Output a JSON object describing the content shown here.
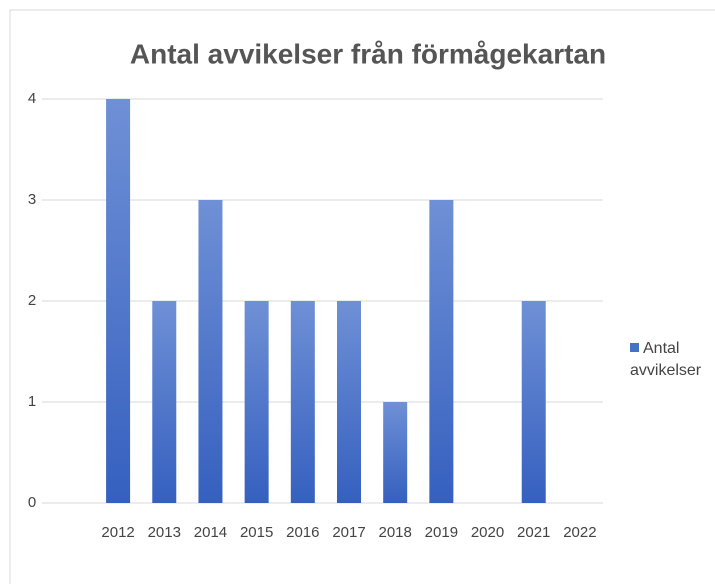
{
  "chart_data": {
    "type": "bar",
    "title": "Antal avvikelser från förmågekartan",
    "categories": [
      "2012",
      "2013",
      "2014",
      "2015",
      "2016",
      "2017",
      "2018",
      "2019",
      "2020",
      "2021",
      "2022"
    ],
    "series": [
      {
        "name": "Antal avvikelser",
        "color": "#4472c4",
        "values": [
          4,
          2,
          3,
          2,
          2,
          2,
          1,
          3,
          0,
          2,
          0
        ]
      }
    ],
    "ylim": [
      0,
      4
    ],
    "yticks": [
      0,
      1,
      2,
      3,
      4
    ],
    "grid": true,
    "legend": "right"
  }
}
